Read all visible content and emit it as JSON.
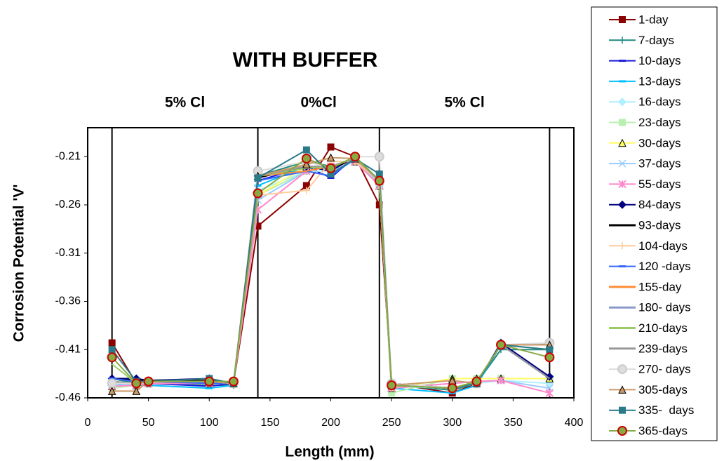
{
  "chart_data": {
    "type": "line",
    "title": "WITH BUFFER",
    "x_label": "Length (mm)",
    "y_label": "Corrosion Potential 'V'",
    "annotations": [
      "5% Cl",
      "0%Cl",
      "5% Cl"
    ],
    "vlines": [
      20,
      140,
      240,
      380
    ],
    "xlim": [
      0,
      400
    ],
    "xticks": [
      0,
      50,
      100,
      150,
      200,
      250,
      300,
      350,
      400
    ],
    "ylim": [
      -0.46,
      -0.18
    ],
    "yticks": [
      -0.46,
      -0.41,
      -0.36,
      -0.31,
      -0.26,
      -0.21
    ],
    "x": [
      20,
      40,
      50,
      100,
      120,
      140,
      180,
      200,
      220,
      240,
      250,
      300,
      320,
      340,
      380
    ],
    "legend": "right",
    "series": [
      {
        "name": "1-day",
        "color": "#8b0000",
        "marker": "square",
        "values": [
          -0.403,
          -0.445,
          -0.443,
          -0.443,
          -0.445,
          -0.282,
          -0.24,
          -0.2,
          -0.21,
          -0.26,
          -0.445,
          -0.455,
          -0.445,
          -0.405,
          -0.405
        ]
      },
      {
        "name": "7-days",
        "color": "#1f8a80",
        "marker": "plus",
        "values": [
          -0.44,
          -0.445,
          -0.445,
          -0.447,
          -0.447,
          -0.23,
          -0.215,
          -0.22,
          -0.215,
          -0.235,
          -0.447,
          -0.452,
          -0.445,
          -0.41,
          -0.41
        ]
      },
      {
        "name": "10-days",
        "color": "#1a1adb",
        "marker": "dash",
        "values": [
          -0.44,
          -0.44,
          -0.445,
          -0.448,
          -0.445,
          -0.235,
          -0.22,
          -0.232,
          -0.21,
          -0.235,
          -0.445,
          -0.45,
          -0.445,
          -0.405,
          -0.44
        ]
      },
      {
        "name": "13-days",
        "color": "#00bfff",
        "marker": "dash",
        "values": [
          -0.445,
          -0.447,
          -0.447,
          -0.45,
          -0.447,
          -0.24,
          -0.22,
          -0.225,
          -0.215,
          -0.235,
          -0.45,
          -0.455,
          -0.447,
          -0.405,
          -0.405
        ]
      },
      {
        "name": "16-days",
        "color": "#b0f0ff",
        "marker": "diamond",
        "values": [
          -0.445,
          -0.445,
          -0.445,
          -0.445,
          -0.445,
          -0.245,
          -0.225,
          -0.225,
          -0.215,
          -0.24,
          -0.448,
          -0.45,
          -0.445,
          -0.442,
          -0.445
        ]
      },
      {
        "name": "23-days",
        "color": "#b8f0b0",
        "marker": "square",
        "values": [
          -0.45,
          -0.447,
          -0.445,
          -0.443,
          -0.445,
          -0.25,
          -0.225,
          -0.22,
          -0.215,
          -0.24,
          -0.455,
          -0.44,
          -0.44,
          -0.44,
          -0.44
        ]
      },
      {
        "name": "30-days",
        "color": "#ffff66",
        "marker": "triangle",
        "values": [
          -0.448,
          -0.447,
          -0.445,
          -0.445,
          -0.445,
          -0.25,
          -0.22,
          -0.22,
          -0.215,
          -0.24,
          -0.45,
          -0.44,
          -0.44,
          -0.44,
          -0.44
        ]
      },
      {
        "name": "37-days",
        "color": "#99ccff",
        "marker": "x",
        "values": [
          -0.448,
          -0.445,
          -0.445,
          -0.445,
          -0.445,
          -0.255,
          -0.225,
          -0.22,
          -0.215,
          -0.238,
          -0.45,
          -0.445,
          -0.443,
          -0.442,
          -0.45
        ]
      },
      {
        "name": "55-days",
        "color": "#ff88cc",
        "marker": "star",
        "values": [
          -0.448,
          -0.447,
          -0.445,
          -0.445,
          -0.445,
          -0.265,
          -0.225,
          -0.22,
          -0.215,
          -0.24,
          -0.45,
          -0.445,
          -0.443,
          -0.442,
          -0.455
        ]
      },
      {
        "name": "84-days",
        "color": "#000080",
        "marker": "diamond",
        "values": [
          -0.44,
          -0.44,
          -0.442,
          -0.44,
          -0.445,
          -0.23,
          -0.22,
          -0.225,
          -0.21,
          -0.235,
          -0.445,
          -0.45,
          -0.445,
          -0.403,
          -0.438
        ]
      },
      {
        "name": "93-days",
        "color": "#000000",
        "marker": "none",
        "values": [
          -0.44,
          -0.442,
          -0.442,
          -0.442,
          -0.445,
          -0.232,
          -0.22,
          -0.222,
          -0.212,
          -0.235,
          -0.445,
          -0.45,
          -0.445,
          -0.405,
          -0.405
        ]
      },
      {
        "name": "104-days",
        "color": "#ffcc99",
        "marker": "plus",
        "values": [
          -0.445,
          -0.445,
          -0.443,
          -0.443,
          -0.445,
          -0.25,
          -0.245,
          -0.215,
          -0.215,
          -0.235,
          -0.445,
          -0.45,
          -0.443,
          -0.405,
          -0.41
        ]
      },
      {
        "name": "120 -days",
        "color": "#3366ff",
        "marker": "dash",
        "values": [
          -0.44,
          -0.443,
          -0.443,
          -0.445,
          -0.445,
          -0.235,
          -0.225,
          -0.23,
          -0.212,
          -0.235,
          -0.447,
          -0.45,
          -0.445,
          -0.405,
          -0.405
        ]
      },
      {
        "name": "155-day",
        "color": "#ff8c33",
        "marker": "none",
        "values": [
          -0.443,
          -0.445,
          -0.443,
          -0.443,
          -0.445,
          -0.23,
          -0.225,
          -0.22,
          -0.212,
          -0.235,
          -0.447,
          -0.45,
          -0.445,
          -0.405,
          -0.405
        ]
      },
      {
        "name": "180- days",
        "color": "#8899cc",
        "marker": "none",
        "values": [
          -0.443,
          -0.445,
          -0.443,
          -0.443,
          -0.445,
          -0.23,
          -0.22,
          -0.22,
          -0.212,
          -0.235,
          -0.447,
          -0.45,
          -0.445,
          -0.405,
          -0.405
        ]
      },
      {
        "name": "210-days",
        "color": "#99cc66",
        "marker": "none",
        "values": [
          -0.425,
          -0.445,
          -0.443,
          -0.443,
          -0.445,
          -0.23,
          -0.222,
          -0.22,
          -0.212,
          -0.235,
          -0.447,
          -0.45,
          -0.445,
          -0.405,
          -0.41
        ]
      },
      {
        "name": "239-days",
        "color": "#999999",
        "marker": "none",
        "values": [
          -0.443,
          -0.445,
          -0.443,
          -0.443,
          -0.445,
          -0.23,
          -0.22,
          -0.22,
          -0.212,
          -0.235,
          -0.447,
          -0.45,
          -0.445,
          -0.405,
          -0.44
        ]
      },
      {
        "name": "270- days",
        "color": "#dddddd",
        "marker": "circle",
        "values": [
          -0.445,
          -0.445,
          -0.443,
          -0.443,
          -0.445,
          -0.225,
          -0.215,
          -0.222,
          -0.21,
          -0.21,
          -0.445,
          -0.45,
          -0.445,
          -0.405,
          -0.403
        ]
      },
      {
        "name": "305-days",
        "color": "#cc9966",
        "marker": "triangle",
        "values": [
          -0.453,
          -0.453,
          -0.443,
          -0.443,
          -0.445,
          -0.23,
          -0.218,
          -0.211,
          -0.212,
          -0.235,
          -0.447,
          -0.442,
          -0.445,
          -0.405,
          -0.405
        ]
      },
      {
        "name": "335-  days",
        "color": "#2a7a8a",
        "marker": "square",
        "values": [
          -0.41,
          -0.443,
          -0.443,
          -0.44,
          -0.445,
          -0.232,
          -0.203,
          -0.228,
          -0.212,
          -0.228,
          -0.447,
          -0.45,
          -0.445,
          -0.405,
          -0.41
        ]
      },
      {
        "name": "365-days",
        "color": "#88aa44",
        "marker": "circle",
        "values": [
          -0.418,
          -0.445,
          -0.443,
          -0.443,
          -0.443,
          -0.248,
          -0.212,
          -0.222,
          -0.21,
          -0.235,
          -0.447,
          -0.45,
          -0.443,
          -0.405,
          -0.418
        ]
      }
    ]
  }
}
